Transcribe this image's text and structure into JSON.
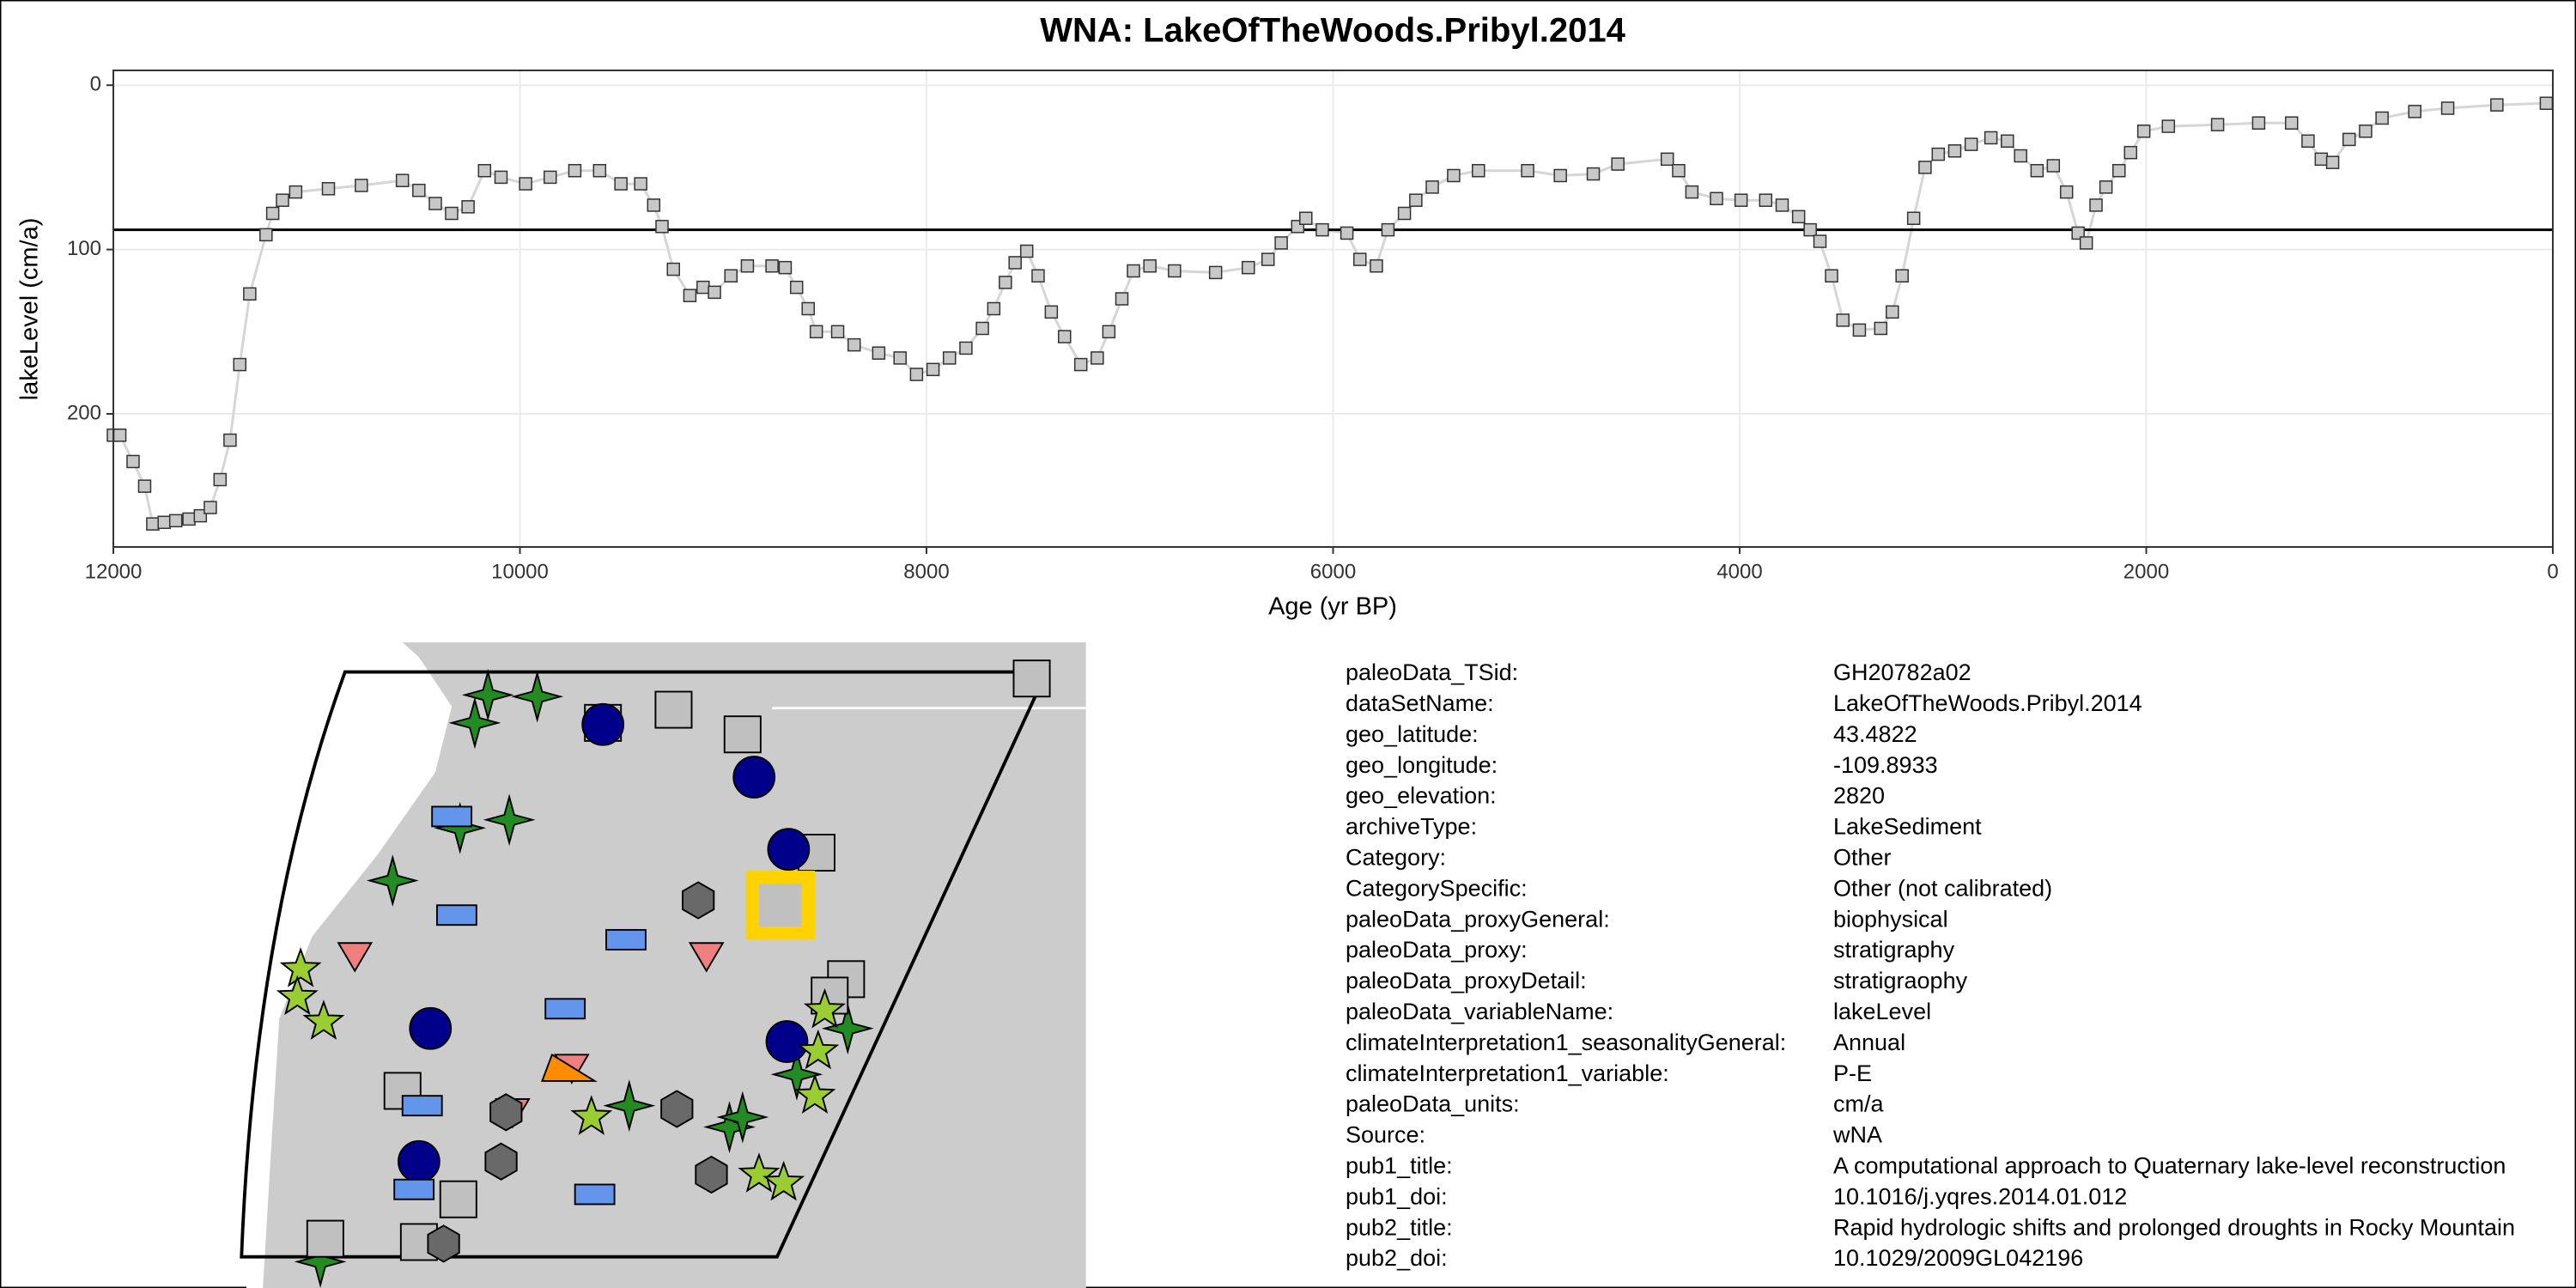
{
  "chart_data": {
    "type": "line",
    "title": "WNA: LakeOfTheWoods.Pribyl.2014",
    "x_label": "Age (yr BP)",
    "y_label": "lakeLevel (cm/a)",
    "x": [
      12000,
      11968,
      11903,
      11846,
      11806,
      11750,
      11693,
      11628,
      11572,
      11523,
      11475,
      11426,
      11378,
      11329,
      11249,
      11216,
      11168,
      11103,
      10942,
      10780,
      10578,
      10497,
      10416,
      10336,
      10255,
      10174,
      10093,
      9972,
      9851,
      9730,
      9608,
      9503,
      9406,
      9342,
      9301,
      9245,
      9164,
      9099,
      9043,
      8962,
      8881,
      8760,
      8695,
      8639,
      8582,
      8542,
      8437,
      8356,
      8235,
      8130,
      8049,
      7968,
      7887,
      7806,
      7725,
      7669,
      7612,
      7564,
      7507,
      7451,
      7386,
      7321,
      7241,
      7160,
      7103,
      7039,
      6982,
      6901,
      6780,
      6578,
      6417,
      6320,
      6255,
      6174,
      6134,
      6053,
      5932,
      5868,
      5787,
      5730,
      5649,
      5593,
      5512,
      5407,
      5285,
      5043,
      4882,
      4720,
      4599,
      4356,
      4300,
      4235,
      4114,
      3993,
      3872,
      3791,
      3710,
      3653,
      3605,
      3548,
      3492,
      3411,
      3306,
      3249,
      3201,
      3144,
      3088,
      3023,
      2942,
      2861,
      2764,
      2683,
      2618,
      2537,
      2457,
      2392,
      2335,
      2295,
      2247,
      2198,
      2134,
      2077,
      2012,
      1891,
      1649,
      1447,
      1285,
      1204,
      1139,
      1083,
      1002,
      921,
      840,
      679,
      517,
      275,
      32
    ],
    "values": [
      213,
      213,
      229,
      244,
      267,
      266,
      265,
      264,
      262,
      257,
      240,
      216,
      170,
      127,
      91,
      78,
      70,
      65,
      63,
      61,
      58,
      64,
      72,
      78,
      74,
      52,
      56,
      60,
      56,
      52,
      52,
      60,
      60,
      73,
      86,
      112,
      128,
      123,
      126,
      116,
      110,
      110,
      111,
      123,
      136,
      150,
      150,
      158,
      163,
      166,
      176,
      173,
      166,
      160,
      148,
      136,
      120,
      108,
      101,
      116,
      138,
      153,
      170,
      166,
      150,
      130,
      113,
      110,
      113,
      114,
      111,
      106,
      96,
      86,
      81,
      88,
      90,
      106,
      110,
      88,
      78,
      70,
      62,
      55,
      52,
      52,
      55,
      54,
      48,
      45,
      52,
      65,
      69,
      70,
      70,
      73,
      80,
      88,
      95,
      116,
      143,
      149,
      148,
      138,
      116,
      81,
      50,
      42,
      40,
      36,
      32,
      34,
      43,
      52,
      49,
      65,
      90,
      96,
      73,
      62,
      52,
      41,
      28,
      25,
      24,
      23,
      23,
      34,
      45,
      47,
      33,
      28,
      20,
      16,
      14,
      12,
      11
    ],
    "hline": 88,
    "line_color": "#d6d6d6",
    "marker_color": "#c8c8c8",
    "xlim": [
      12000,
      0
    ],
    "xticks": [
      12000,
      10000,
      8000,
      6000,
      4000,
      2000,
      0
    ],
    "ylim": [
      -9,
      281
    ],
    "y_reversed": true,
    "yticks": [
      0,
      100,
      200
    ],
    "grid": true
  },
  "metadata": {
    "rows": [
      [
        "paleoData_TSid:",
        "GH20782a02"
      ],
      [
        "dataSetName:",
        "LakeOfTheWoods.Pribyl.2014"
      ],
      [
        "geo_latitude:",
        "43.4822"
      ],
      [
        "geo_longitude:",
        "-109.8933"
      ],
      [
        "geo_elevation:",
        "2820"
      ],
      [
        "archiveType:",
        "LakeSediment"
      ],
      [
        "Category:",
        "Other"
      ],
      [
        "CategorySpecific:",
        "Other (not calibrated)"
      ],
      [
        "paleoData_proxyGeneral:",
        "biophysical"
      ],
      [
        "paleoData_proxy:",
        "stratigraphy"
      ],
      [
        "paleoData_proxyDetail:",
        "stratigraophy"
      ],
      [
        "paleoData_variableName:",
        "lakeLevel"
      ],
      [
        "climateInterpretation1_seasonalityGeneral:",
        "Annual"
      ],
      [
        "climateInterpretation1_variable:",
        "P-E"
      ],
      [
        "paleoData_units:",
        "cm/a"
      ],
      [
        "Source:",
        "wNA"
      ],
      [
        "pub1_title:",
        "A computational approach to Quaternary lake-level reconstruction"
      ],
      [
        "pub1_doi:",
        "10.1016/j.yqres.2014.01.012"
      ],
      [
        "pub2_title:",
        "Rapid hydrologic shifts and prolonged droughts in Rocky Mountain"
      ],
      [
        "pub2_doi:",
        "10.1029/2009GL042196"
      ]
    ]
  }
}
